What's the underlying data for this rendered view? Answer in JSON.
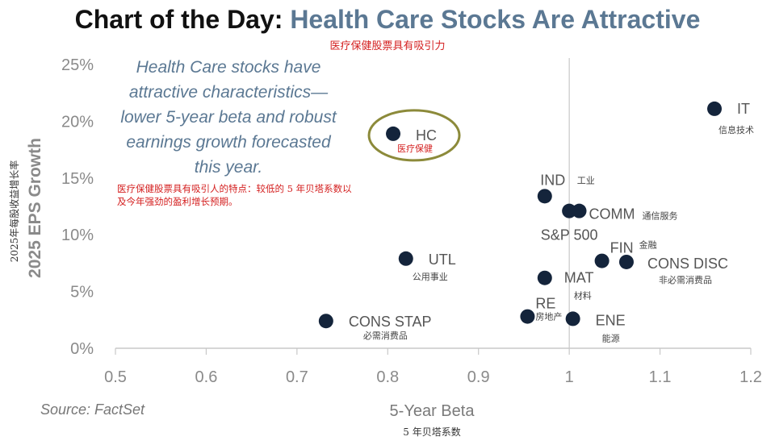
{
  "header": {
    "title_prefix": "Chart of the Day: ",
    "title_highlight": "Health Care Stocks Are Attractive",
    "subtitle_cn": "医疗保健股票具有吸引力"
  },
  "callout": {
    "text": "Health Care stocks have attractive characteristics—lower 5-year beta and robust earnings growth forecasted this year.",
    "text_cn": "医疗保健股票具有吸引人的特点：较低的 5 年贝塔系数以及今年强劲的盈利增长预期。"
  },
  "source": "Source: FactSet",
  "colors": {
    "point": "#14243b",
    "highlight_ring": "#8c8a3a",
    "axis": "#c8c8c8",
    "callout": "#5b7893",
    "annotation_cn": "#d42020"
  },
  "chart_data": {
    "type": "scatter",
    "xlabel": "5-Year Beta",
    "xlabel_cn": "5 年贝塔系数",
    "ylabel": "2025 EPS Growth",
    "ylabel_cn": "2025年每股收益增长率",
    "xlim": [
      0.5,
      1.2
    ],
    "ylim": [
      0,
      25
    ],
    "x_ticks": [
      0.5,
      0.6,
      0.7,
      0.8,
      0.9,
      1.0,
      1.1,
      1.2
    ],
    "x_tick_labels": [
      "0.5",
      "0.6",
      "0.7",
      "0.8",
      "0.9",
      "1",
      "1.1",
      "1.2"
    ],
    "y_ticks": [
      0,
      5,
      10,
      15,
      20,
      25
    ],
    "y_tick_labels": [
      "0%",
      "5%",
      "10%",
      "15%",
      "20%",
      "25%"
    ],
    "reference_line_x": 1.0,
    "highlighted": "HC",
    "points": [
      {
        "label": "IT",
        "label_cn": "信息技术",
        "x": 1.16,
        "y": 21.1
      },
      {
        "label": "HC",
        "label_cn": "医疗保健",
        "x": 0.806,
        "y": 18.9
      },
      {
        "label": "IND",
        "label_cn": "工业",
        "x": 0.973,
        "y": 13.4
      },
      {
        "label": "COMM",
        "label_cn": "通信服务",
        "x": 1.011,
        "y": 12.1
      },
      {
        "label": "S&P 500",
        "label_cn": "",
        "x": 1.0,
        "y": 12.1
      },
      {
        "label": "FIN",
        "label_cn": "金融",
        "x": 1.036,
        "y": 7.7
      },
      {
        "label": "CONS DISC",
        "label_cn": "非必需消费品",
        "x": 1.063,
        "y": 7.6
      },
      {
        "label": "UTL",
        "label_cn": "公用事业",
        "x": 0.82,
        "y": 7.9
      },
      {
        "label": "MAT",
        "label_cn": "材料",
        "x": 0.973,
        "y": 6.2
      },
      {
        "label": "RE",
        "label_cn": "房地产",
        "x": 0.954,
        "y": 2.8
      },
      {
        "label": "ENE",
        "label_cn": "能源",
        "x": 1.004,
        "y": 2.6
      },
      {
        "label": "CONS STAP",
        "label_cn": "必需消费品",
        "x": 0.732,
        "y": 2.4
      }
    ]
  }
}
